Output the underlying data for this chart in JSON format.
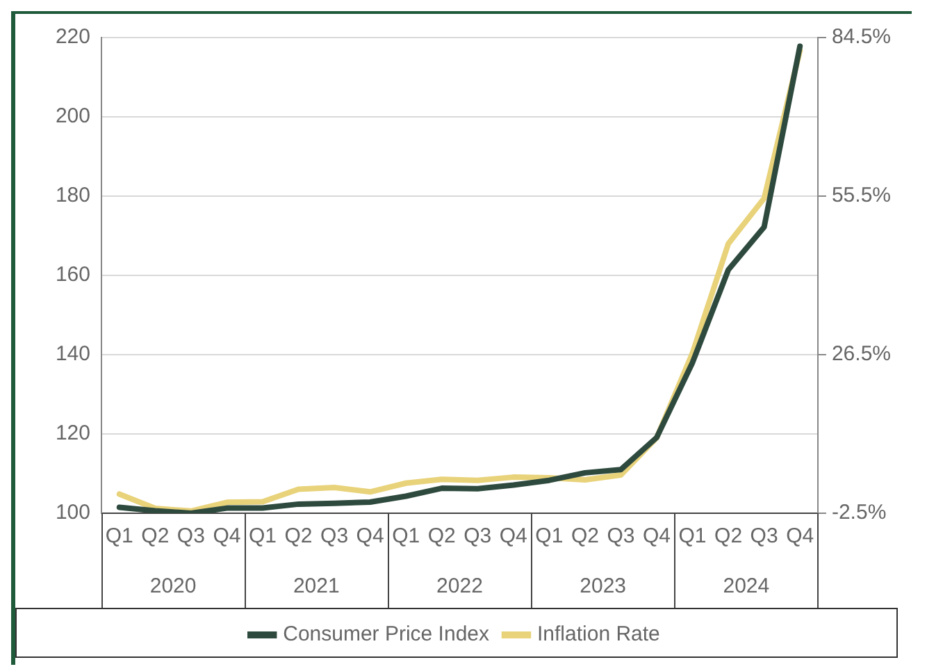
{
  "chart_data": {
    "type": "line",
    "categories": [
      "Q1",
      "Q2",
      "Q3",
      "Q4",
      "Q1",
      "Q2",
      "Q3",
      "Q4",
      "Q1",
      "Q2",
      "Q3",
      "Q4",
      "Q1",
      "Q2",
      "Q3",
      "Q4",
      "Q1",
      "Q2",
      "Q3",
      "Q4"
    ],
    "annotations": [
      "2020",
      "2021",
      "2022",
      "2023",
      "2024"
    ],
    "series": [
      {
        "name": "Consumer Price Index",
        "color": "#2e4a3e",
        "values": [
          101.5,
          100.6,
          100,
          101.3,
          101.3,
          102.3,
          102.5,
          102.8,
          104.3,
          106.3,
          106.2,
          107.1,
          108.3,
          110.2,
          111,
          119.1,
          138,
          161.4,
          172.2,
          217.8
        ]
      },
      {
        "name": "Inflation Rate",
        "color": "#e8d27a",
        "axis": "y2",
        "values": [
          1.0,
          -1.6,
          -2.1,
          -0.5,
          -0.4,
          1.9,
          2.2,
          1.4,
          3.0,
          3.7,
          3.5,
          4.1,
          4.0,
          3.6,
          4.5,
          11.3,
          26.8,
          46.8,
          55.1,
          82.1
        ]
      }
    ],
    "ylim": [
      100,
      220
    ],
    "yticks": [
      100,
      120,
      140,
      160,
      180,
      200,
      220
    ],
    "y2lim": [
      -2.5,
      84.5
    ],
    "y2ticks": [
      {
        "value": -2.5,
        "label": "-2.5%"
      },
      {
        "value": 26.5,
        "label": "26.5%"
      },
      {
        "value": 55.5,
        "label": "55.5%"
      },
      {
        "value": 84.5,
        "label": "84.5%"
      }
    ],
    "grid": "y",
    "legend": "bottom",
    "line_style": "solid",
    "marker": "none"
  }
}
